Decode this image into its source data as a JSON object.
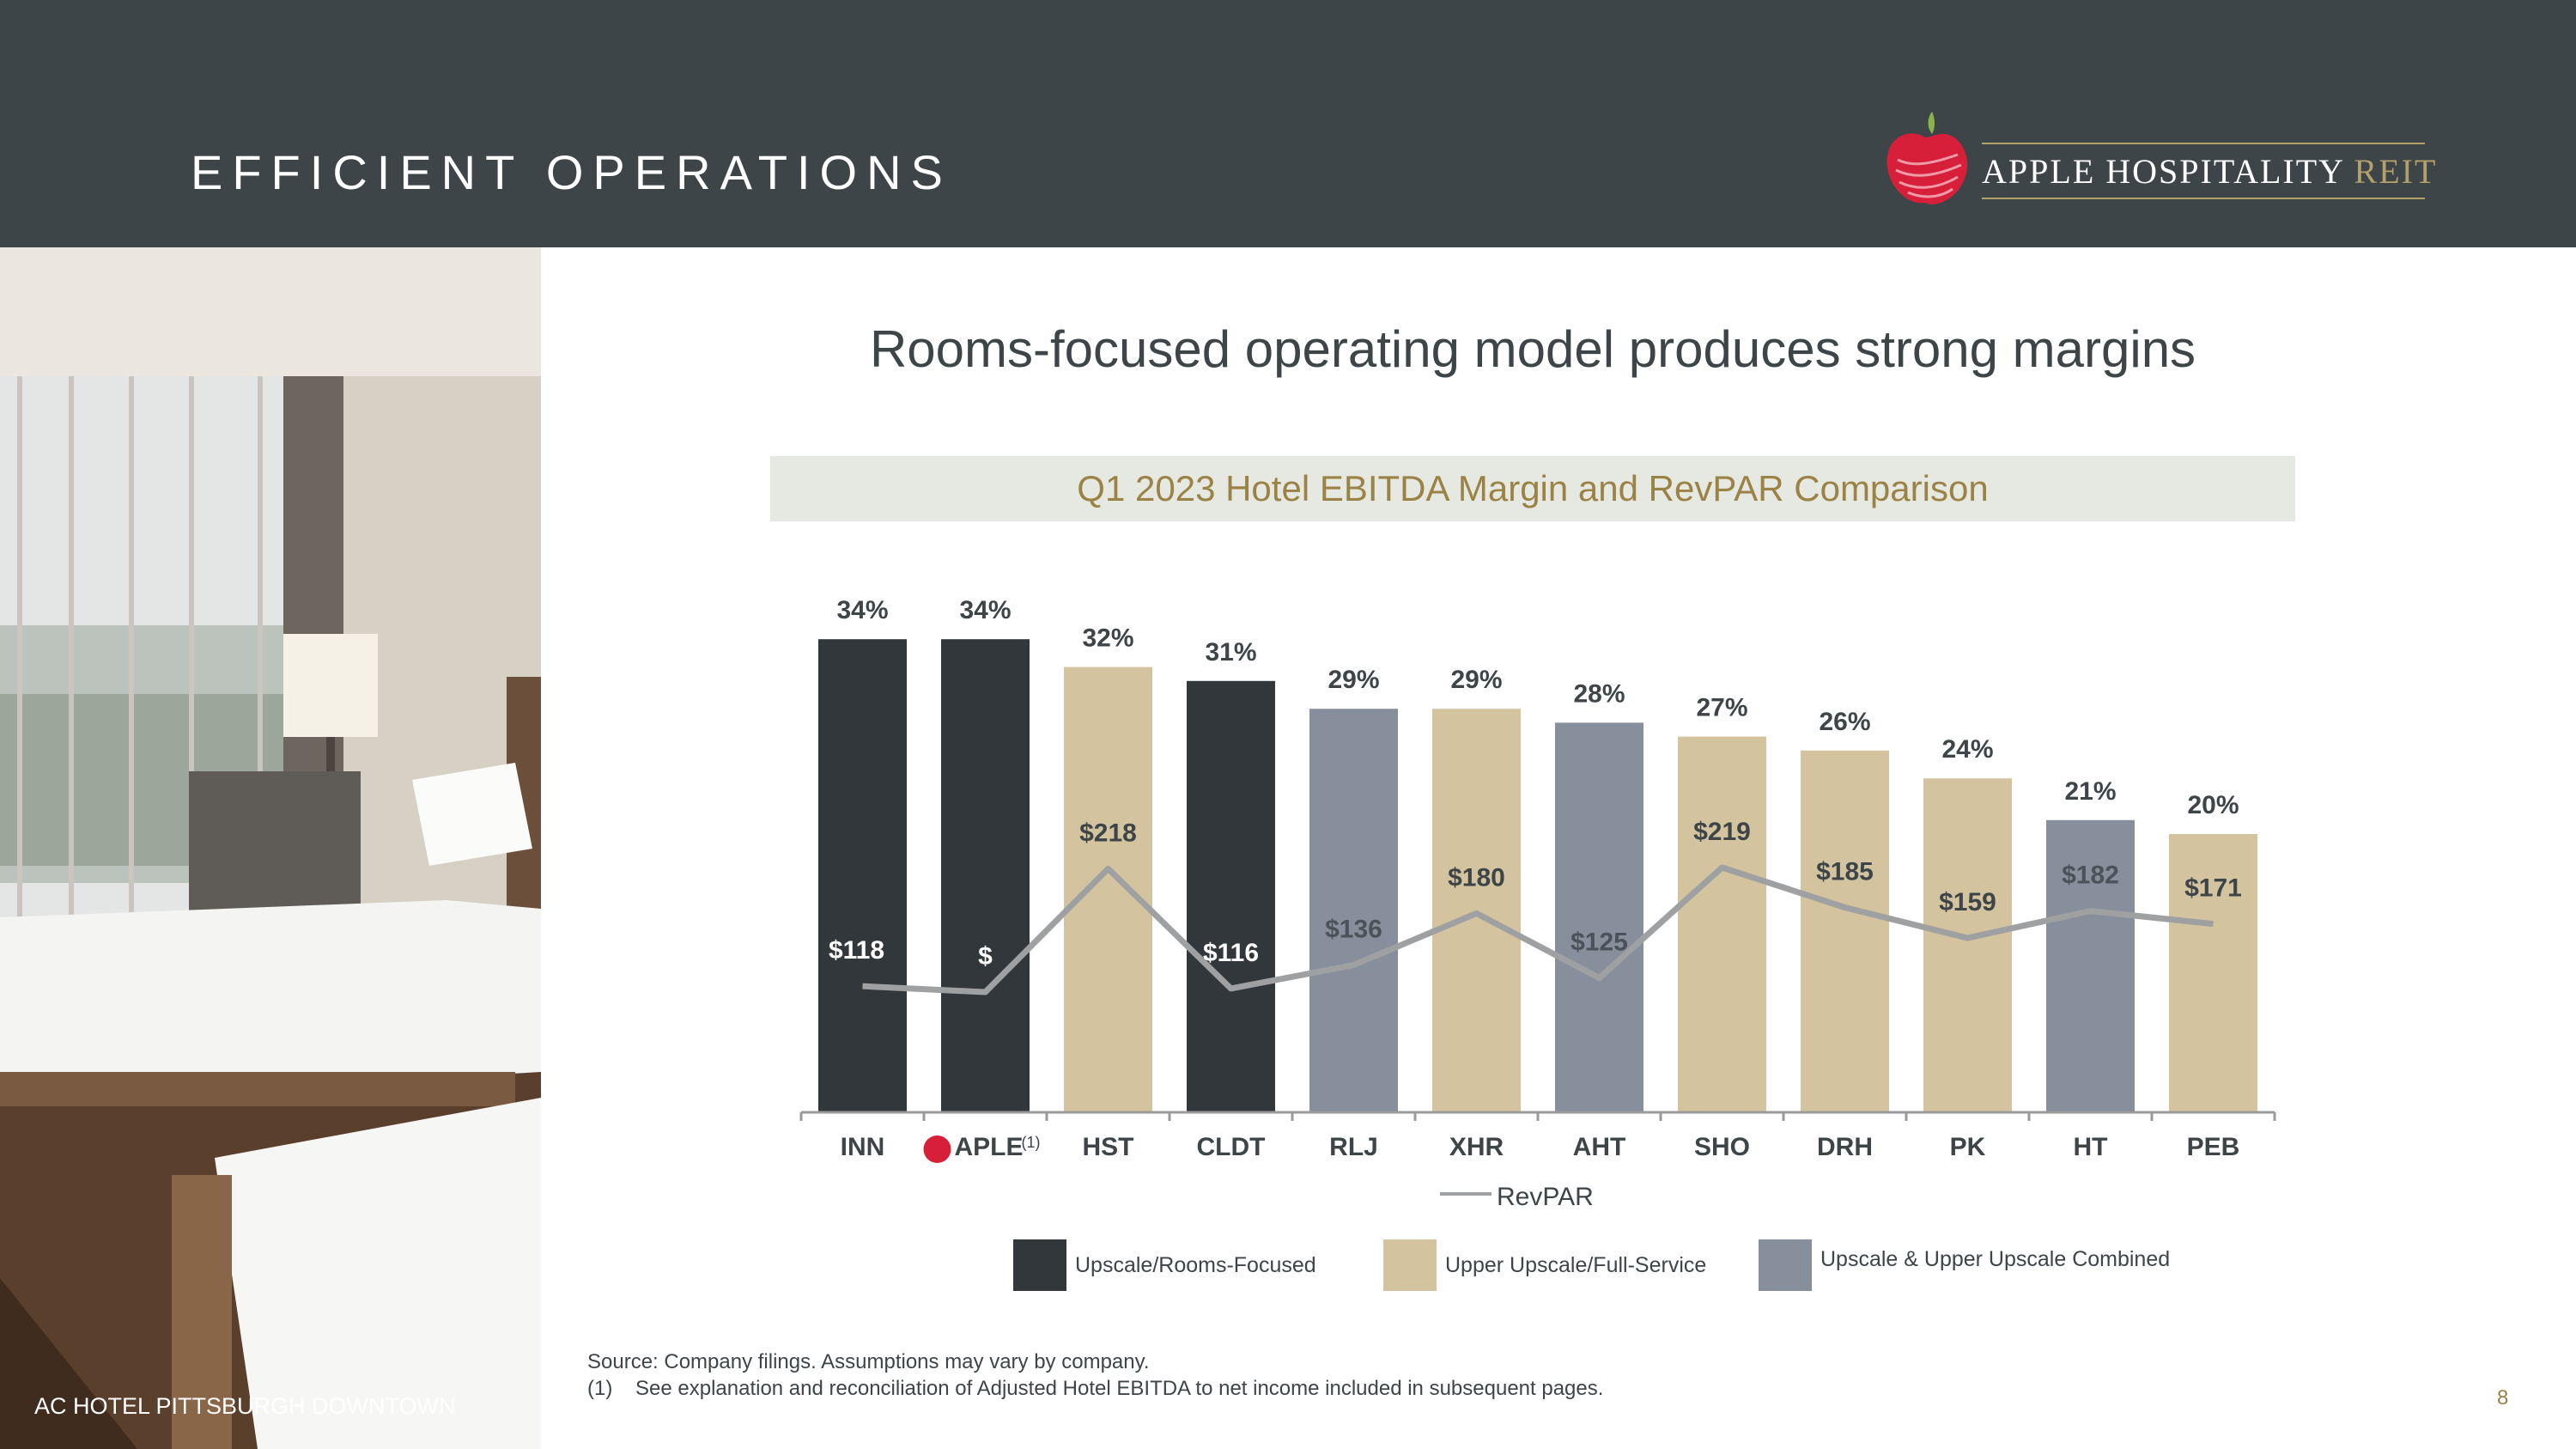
{
  "header": {
    "title": "EFFICIENT OPERATIONS"
  },
  "logo": {
    "name": "APPLE HOSPITALITY",
    "suffix": "REIT"
  },
  "photo": {
    "caption": "AC HOTEL PITTSBURGH DOWNTOWN"
  },
  "main": {
    "title": "Rooms-focused operating model produces strong margins"
  },
  "chart_data": {
    "type": "bar",
    "title": "Q1 2023 Hotel EBITDA Margin and RevPAR Comparison",
    "categories": [
      "INN",
      "APLE",
      "HST",
      "CLDT",
      "RLJ",
      "XHR",
      "AHT",
      "SHO",
      "DRH",
      "PK",
      "HT",
      "PEB"
    ],
    "aple_footnote": "(1)",
    "series": [
      {
        "name": "Hotel EBITDA Margin",
        "unit": "%",
        "values": [
          34,
          34,
          32,
          31,
          29,
          29,
          28,
          27,
          26,
          24,
          21,
          20
        ]
      },
      {
        "name": "RevPAR",
        "unit": "$",
        "values": [
          118,
          113,
          218,
          116,
          136,
          180,
          125,
          219,
          185,
          159,
          182,
          171
        ]
      }
    ],
    "margin_labels": [
      "34%",
      "34%",
      "32%",
      "31%",
      "29%",
      "29%",
      "28%",
      "27%",
      "26%",
      "24%",
      "21%",
      "20%"
    ],
    "revpar_labels": [
      "$118",
      "$",
      "$218",
      "$116",
      "$136",
      "$180",
      "$125",
      "$219",
      "$185",
      "$159",
      "$182",
      "$171"
    ],
    "segments": [
      "dark",
      "dark",
      "tan",
      "dark",
      "gray",
      "tan",
      "gray",
      "tan",
      "tan",
      "tan",
      "gray",
      "tan"
    ],
    "line_legend": "RevPAR",
    "legend": [
      {
        "label": "Upscale/Rooms-Focused",
        "color": "#32373c"
      },
      {
        "label": "Upper Upscale/Full-Service",
        "color": "#d3c49f"
      },
      {
        "label": "Upscale & Upper Upscale Combined",
        "color": "#868f9b"
      }
    ],
    "line_color": "#9fa0a1"
  },
  "footer": {
    "source": "Source: Company filings. Assumptions may vary by company.",
    "note_num": "(1)",
    "note": "See explanation and reconciliation of Adjusted Hotel EBITDA to net income included in subsequent pages.",
    "page": "8"
  }
}
